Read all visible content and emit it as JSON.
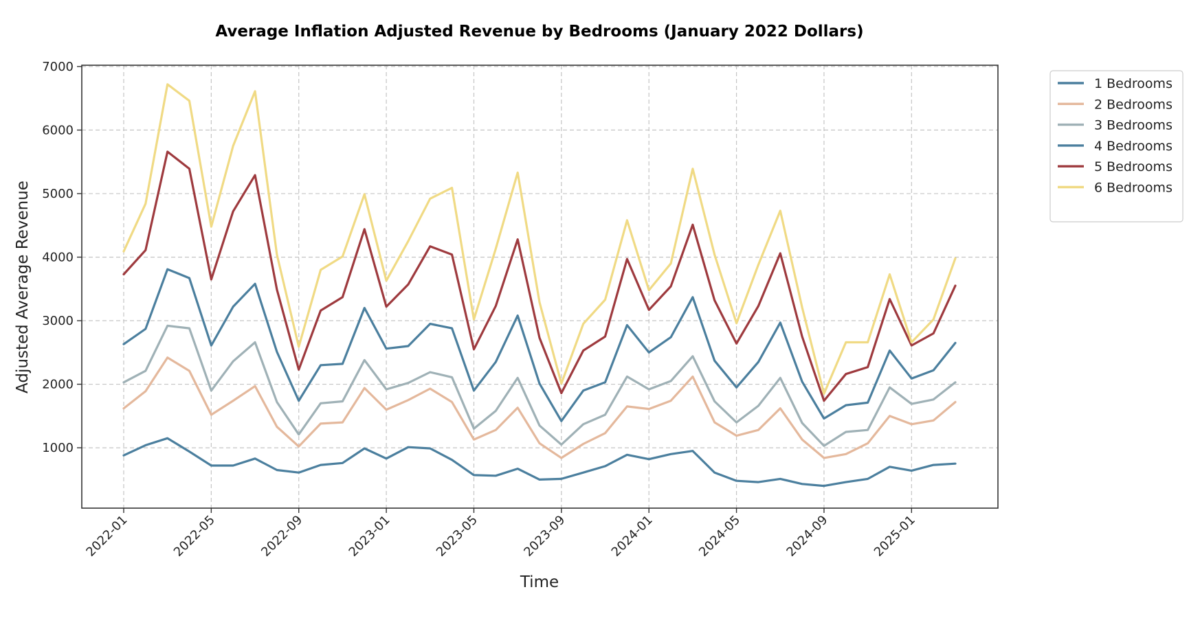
{
  "chart_data": {
    "type": "line",
    "title": "Average Inflation Adjusted Revenue by Bedrooms (January 2022 Dollars)",
    "xlabel": "Time",
    "ylabel": "Adjusted Average Revenue",
    "ylim": [
      50,
      7020
    ],
    "yticks": [
      1000,
      2000,
      3000,
      4000,
      5000,
      6000,
      7000
    ],
    "xticks": [
      "2022-01",
      "2022-05",
      "2022-09",
      "2023-01",
      "2023-05",
      "2023-09",
      "2024-01",
      "2024-05",
      "2024-09",
      "2025-01"
    ],
    "x": [
      "2022-01",
      "2022-02",
      "2022-03",
      "2022-04",
      "2022-05",
      "2022-06",
      "2022-07",
      "2022-08",
      "2022-09",
      "2022-10",
      "2022-11",
      "2022-12",
      "2023-01",
      "2023-02",
      "2023-03",
      "2023-04",
      "2023-05",
      "2023-06",
      "2023-07",
      "2023-08",
      "2023-09",
      "2023-10",
      "2023-11",
      "2023-12",
      "2024-01",
      "2024-02",
      "2024-03",
      "2024-04",
      "2024-05",
      "2024-06",
      "2024-07",
      "2024-08",
      "2024-09",
      "2024-10",
      "2024-11",
      "2024-12",
      "2025-01",
      "2025-02",
      "2025-03"
    ],
    "grid": true,
    "legend_position": "outside-top-right",
    "series": [
      {
        "name": "1 Bedrooms",
        "color": "#4b7f9e",
        "values": [
          880,
          1040,
          1150,
          940,
          720,
          720,
          830,
          650,
          610,
          730,
          760,
          990,
          830,
          1010,
          990,
          810,
          570,
          560,
          670,
          500,
          510,
          610,
          710,
          890,
          820,
          900,
          950,
          610,
          480,
          460,
          510,
          430,
          400,
          460,
          510,
          700,
          640,
          730,
          750
        ]
      },
      {
        "name": "2 Bedrooms",
        "color": "#e4b89c",
        "values": [
          1620,
          1890,
          2420,
          2210,
          1520,
          1740,
          1970,
          1330,
          1020,
          1380,
          1400,
          1940,
          1600,
          1750,
          1930,
          1720,
          1130,
          1280,
          1630,
          1070,
          840,
          1060,
          1230,
          1650,
          1610,
          1740,
          2120,
          1400,
          1190,
          1280,
          1620,
          1130,
          840,
          900,
          1070,
          1500,
          1370,
          1430,
          1720
        ]
      },
      {
        "name": "3 Bedrooms",
        "color": "#9fb1b6",
        "values": [
          2030,
          2210,
          2920,
          2880,
          1900,
          2360,
          2660,
          1720,
          1210,
          1700,
          1730,
          2380,
          1920,
          2020,
          2190,
          2110,
          1300,
          1580,
          2100,
          1350,
          1050,
          1370,
          1520,
          2120,
          1920,
          2050,
          2440,
          1730,
          1400,
          1660,
          2100,
          1390,
          1030,
          1250,
          1280,
          1950,
          1690,
          1760,
          2030
        ]
      },
      {
        "name": "4 Bedrooms",
        "color": "#4b7f9e",
        "values": [
          2630,
          2870,
          3810,
          3670,
          2610,
          3220,
          3580,
          2510,
          1740,
          2300,
          2320,
          3200,
          2560,
          2600,
          2950,
          2880,
          1900,
          2350,
          3080,
          2010,
          1420,
          1900,
          2030,
          2930,
          2500,
          2740,
          3370,
          2370,
          1950,
          2350,
          2970,
          2040,
          1460,
          1670,
          1710,
          2530,
          2090,
          2220,
          2650
        ]
      },
      {
        "name": "5 Bedrooms",
        "color": "#9e3a3e",
        "values": [
          3730,
          4110,
          5660,
          5390,
          3650,
          4720,
          5290,
          3490,
          2230,
          3160,
          3370,
          4440,
          3220,
          3570,
          4170,
          4040,
          2550,
          3230,
          4280,
          2730,
          1860,
          2530,
          2750,
          3970,
          3170,
          3540,
          4510,
          3320,
          2640,
          3230,
          4060,
          2750,
          1740,
          2160,
          2270,
          3340,
          2610,
          2800,
          3550
        ]
      },
      {
        "name": "6 Bedrooms",
        "color": "#f0da84",
        "values": [
          4090,
          4840,
          6720,
          6460,
          4480,
          5750,
          6610,
          4040,
          2590,
          3800,
          4010,
          4990,
          3630,
          4250,
          4920,
          5090,
          3020,
          4130,
          5330,
          3290,
          2010,
          2950,
          3330,
          4580,
          3480,
          3900,
          5390,
          4040,
          2960,
          3880,
          4730,
          3210,
          1850,
          2660,
          2660,
          3730,
          2660,
          3020,
          3980
        ]
      }
    ]
  }
}
